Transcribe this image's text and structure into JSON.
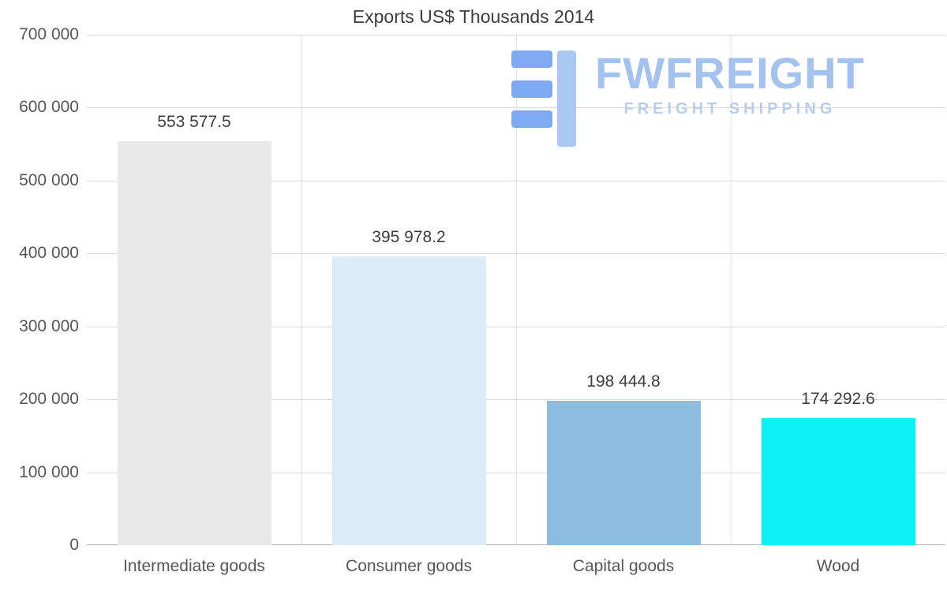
{
  "chart": {
    "title": "Exports US$ Thousands 2014",
    "watermark": {
      "brand": "FWFREIGHT",
      "tagline": "FREIGHT SHIPPING",
      "brand_color": "#a4c2ef",
      "logo_dark_blue": "#7dabf2",
      "logo_light_blue": "#a9c8f4"
    }
  },
  "chart_data": {
    "type": "bar",
    "title": "Exports US$ Thousands 2014",
    "categories": [
      "Intermediate goods",
      "Consumer goods",
      "Capital goods",
      "Wood"
    ],
    "values": [
      553577.5,
      395978.2,
      198444.8,
      174292.6
    ],
    "value_labels": [
      "553 577.5",
      "395 978.2",
      "198 444.8",
      "174 292.6"
    ],
    "bar_colors": [
      "#e8e8e8",
      "#dcebf8",
      "#8cbde1",
      "#0af2f4"
    ],
    "xlabel": "",
    "ylabel": "",
    "ylim": [
      0,
      700000
    ],
    "ytick_interval": 100000,
    "ytick_labels": [
      "0",
      "100 000",
      "200 000",
      "300 000",
      "400 000",
      "500 000",
      "600 000",
      "700 000"
    ],
    "grid": true,
    "legend": false
  }
}
